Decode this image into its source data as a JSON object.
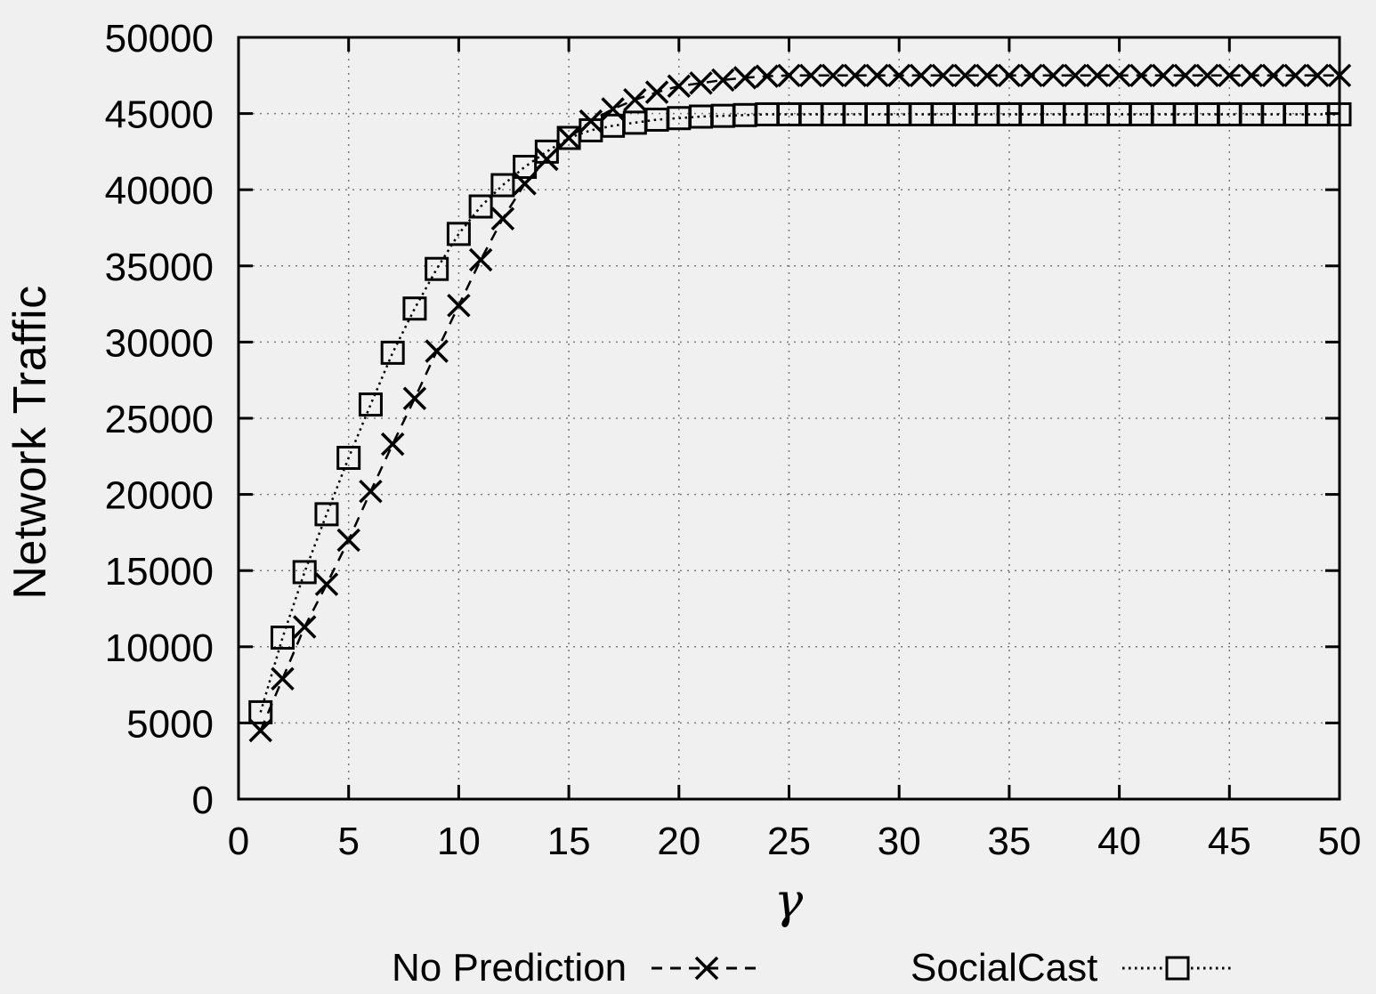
{
  "chart_data": {
    "type": "line",
    "title": "",
    "xlabel": "γ",
    "ylabel": "Network Traffic",
    "xlim": [
      0,
      50
    ],
    "ylim": [
      0,
      50000
    ],
    "x_ticks": [
      0,
      5,
      10,
      15,
      20,
      25,
      30,
      35,
      40,
      45,
      50
    ],
    "y_ticks": [
      0,
      5000,
      10000,
      15000,
      20000,
      25000,
      30000,
      35000,
      40000,
      45000,
      50000
    ],
    "grid": true,
    "legend_position": "bottom",
    "x": [
      1,
      2,
      3,
      4,
      5,
      6,
      7,
      8,
      9,
      10,
      11,
      12,
      13,
      14,
      15,
      16,
      17,
      18,
      19,
      20,
      21,
      22,
      23,
      24,
      25,
      26,
      27,
      28,
      29,
      30,
      31,
      32,
      33,
      34,
      35,
      36,
      37,
      38,
      39,
      40,
      41,
      42,
      43,
      44,
      45,
      46,
      47,
      48,
      49,
      50
    ],
    "series": [
      {
        "name": "No Prediction",
        "marker": "x",
        "line_style": "dashed",
        "values": [
          4500,
          7900,
          11300,
          14100,
          17000,
          20200,
          23300,
          26300,
          29400,
          32400,
          35400,
          38100,
          40400,
          42000,
          43400,
          44500,
          45300,
          45900,
          46400,
          46800,
          47000,
          47200,
          47350,
          47450,
          47500,
          47500,
          47500,
          47500,
          47500,
          47500,
          47500,
          47500,
          47500,
          47500,
          47500,
          47500,
          47500,
          47500,
          47500,
          47500,
          47500,
          47500,
          47500,
          47500,
          47500,
          47500,
          47500,
          47500,
          47500,
          47500
        ]
      },
      {
        "name": "SocialCast",
        "marker": "square",
        "line_style": "dotted",
        "values": [
          5700,
          10600,
          14900,
          18700,
          22400,
          25900,
          29300,
          32200,
          34800,
          37100,
          38900,
          40300,
          41500,
          42500,
          43400,
          43900,
          44200,
          44400,
          44600,
          44700,
          44800,
          44850,
          44900,
          44950,
          44950,
          44950,
          44950,
          44950,
          44950,
          44950,
          44950,
          44950,
          44950,
          44950,
          44950,
          44950,
          44950,
          44950,
          44950,
          44950,
          44950,
          44950,
          44950,
          44950,
          44950,
          44950,
          44950,
          44950,
          44950,
          44950
        ]
      }
    ]
  },
  "colors": {
    "background": "#f0f0f0",
    "foreground": "#000000",
    "grid": "#7a7a7a"
  }
}
